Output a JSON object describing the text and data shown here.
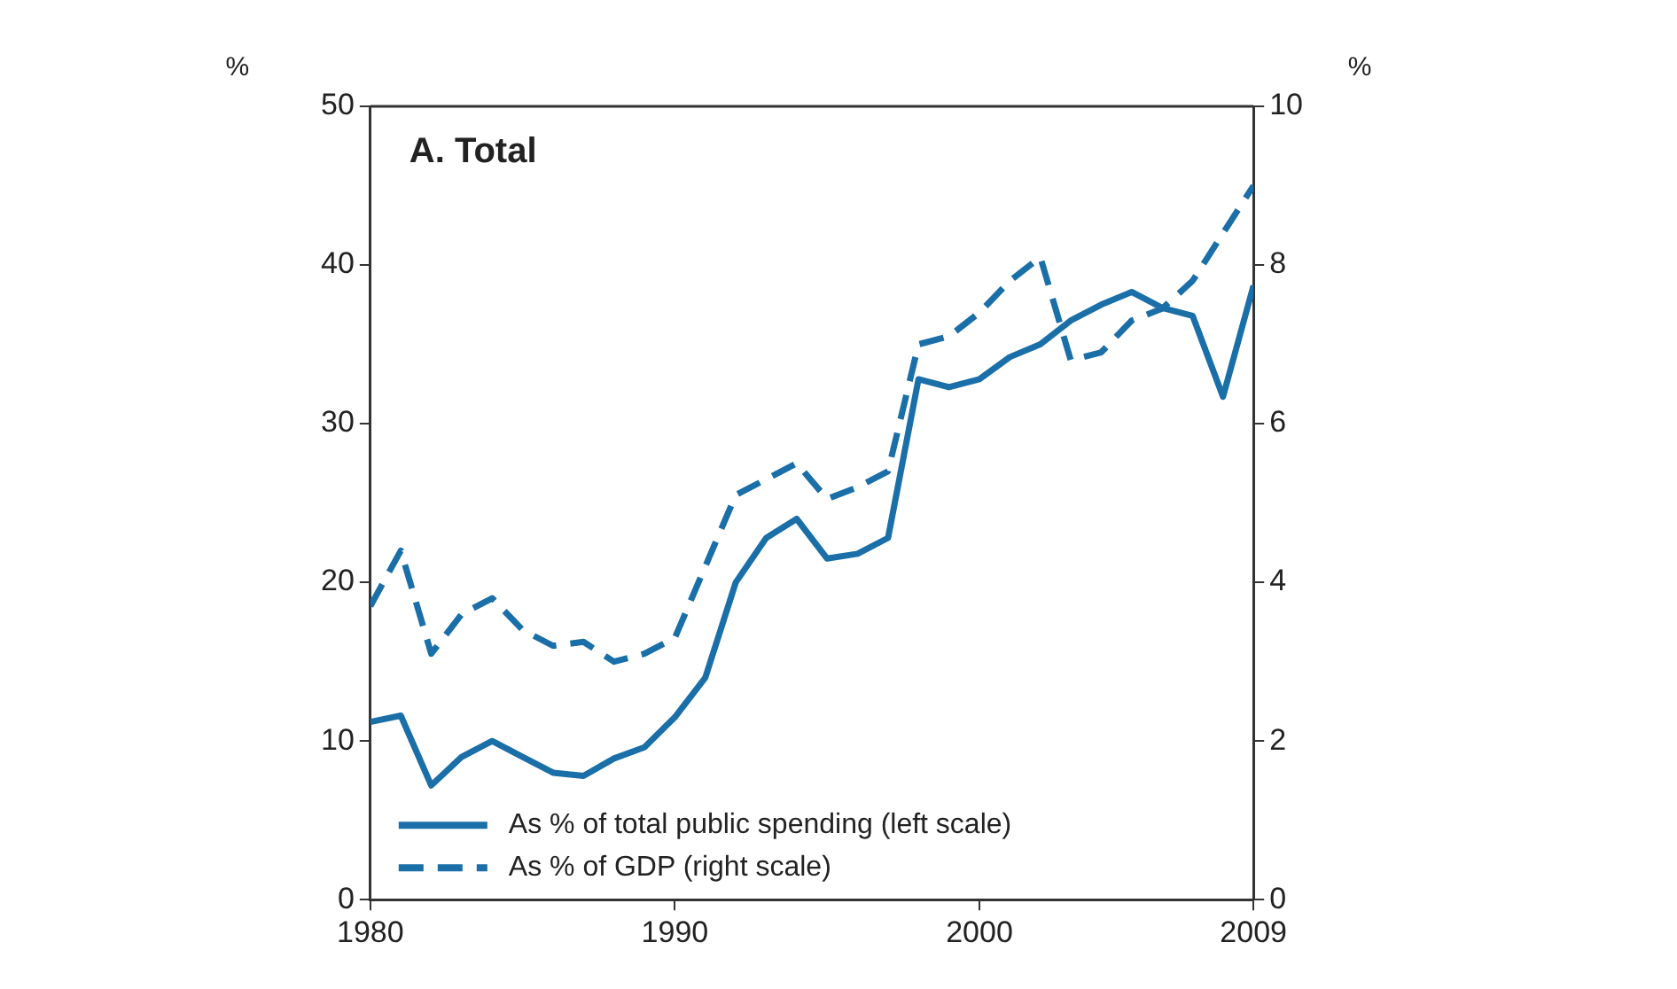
{
  "chart_data": {
    "type": "line",
    "title": "A. Total",
    "ylabel": "%",
    "y2label": "%",
    "x": [
      1980,
      1981,
      1982,
      1983,
      1984,
      1985,
      1986,
      1987,
      1988,
      1989,
      1990,
      1991,
      1992,
      1993,
      1994,
      1995,
      1996,
      1997,
      1998,
      1999,
      2000,
      2001,
      2002,
      2003,
      2004,
      2005,
      2006,
      2007,
      2008,
      2009
    ],
    "series": [
      {
        "name": "As % of total public spending (left scale)",
        "color": "#1a6fa8",
        "line_style": "solid",
        "values": [
          11.2,
          11.6,
          7.2,
          9.0,
          10,
          9,
          8,
          7.8,
          8.9,
          9.6,
          11.5,
          14,
          20,
          22.8,
          24,
          21.5,
          21.8,
          22.8,
          32.8,
          32.3,
          32.8,
          34.2,
          35,
          36.5,
          37.5,
          38.3,
          37.3,
          36.8,
          31.7,
          38.7
        ]
      },
      {
        "name": "As % of GDP (right scale)",
        "color": "#1a6fa8",
        "line_style": "dashed",
        "axis": "y2",
        "values": [
          3.7,
          4.4,
          3.1,
          3.6,
          3.8,
          3.4,
          3.2,
          3.25,
          3.0,
          3.1,
          3.3,
          4.2,
          5.1,
          5.3,
          5.5,
          5.05,
          5.2,
          5.4,
          7.0,
          7.1,
          7.4,
          7.8,
          8.1,
          6.8,
          6.9,
          7.3,
          7.45,
          7.8,
          8.4,
          9.0
        ]
      }
    ],
    "xlim": [
      1980,
      2009
    ],
    "xticks": [
      1980,
      1990,
      2000,
      2009
    ],
    "ylim": [
      0,
      50
    ],
    "yticks": [
      0,
      10,
      20,
      30,
      40,
      50
    ],
    "y2lim": [
      0,
      10
    ],
    "y2ticks": [
      0,
      2,
      4,
      6,
      8,
      10
    ],
    "grid": false,
    "legend": "bottom left",
    "marker": "none"
  }
}
